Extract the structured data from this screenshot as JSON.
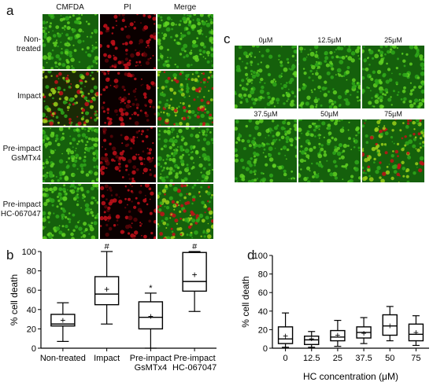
{
  "panel_a": {
    "letter": "a",
    "columns": [
      "CMFDA",
      "PI",
      "Merge"
    ],
    "rows": [
      {
        "label_lines": [
          "Non-treated"
        ]
      },
      {
        "label_lines": [
          "Impact"
        ]
      },
      {
        "label_lines": [
          "Pre-impact",
          "GsMTx4"
        ]
      },
      {
        "label_lines": [
          "Pre-impact",
          "HC-067047"
        ]
      }
    ],
    "colors": {
      "green": "#2fa81a",
      "red": "#c4101a",
      "dark": "#0a0000"
    }
  },
  "panel_c": {
    "letter": "c",
    "labels": [
      "0µM",
      "12.5µM",
      "25µM",
      "37.5µM",
      "50µM",
      "75µM"
    ]
  },
  "panel_b": {
    "letter": "b",
    "chart_data": {
      "type": "box",
      "ylabel": "% cell death",
      "ylim": [
        0,
        100
      ],
      "yticks": [
        0,
        20,
        40,
        60,
        80,
        100
      ],
      "categories": [
        [
          "Non-treated"
        ],
        [
          "Impact"
        ],
        [
          "Pre-impact",
          "GsMTx4"
        ],
        [
          "Pre-impact",
          "HC-067047"
        ]
      ],
      "boxes": [
        {
          "min": 7,
          "q1": 23,
          "median": 25,
          "q3": 35,
          "max": 47,
          "mean": 29,
          "mark": ""
        },
        {
          "min": 25,
          "q1": 45,
          "median": 56,
          "q3": 74,
          "max": 100,
          "mean": 61,
          "mark": "#"
        },
        {
          "min": 0,
          "q1": 20,
          "median": 32,
          "q3": 48,
          "max": 57,
          "mean": 33,
          "mark": "*"
        },
        {
          "min": 38,
          "q1": 59,
          "median": 69,
          "q3": 99,
          "max": 100,
          "mean": 76,
          "mark": "#"
        }
      ]
    }
  },
  "panel_d": {
    "letter": "d",
    "chart_data": {
      "type": "box",
      "xlabel": "HC concentration (μM)",
      "ylabel": "% cell death",
      "ylim": [
        0,
        100
      ],
      "yticks": [
        0,
        20,
        40,
        60,
        80,
        100
      ],
      "categories": [
        "0",
        "12.5",
        "25",
        "37.5",
        "50",
        "75"
      ],
      "boxes": [
        {
          "min": 1,
          "q1": 5,
          "median": 10,
          "q3": 23,
          "max": 38,
          "mean": 13
        },
        {
          "min": 1,
          "q1": 4,
          "median": 9,
          "q3": 13,
          "max": 18,
          "mean": 10
        },
        {
          "min": 2,
          "q1": 8,
          "median": 12,
          "q3": 19,
          "max": 30,
          "mean": 14
        },
        {
          "min": 5,
          "q1": 11,
          "median": 17,
          "q3": 23,
          "max": 33,
          "mean": 16
        },
        {
          "min": 8,
          "q1": 14,
          "median": 24,
          "q3": 36,
          "max": 45,
          "mean": 24
        },
        {
          "min": 3,
          "q1": 8,
          "median": 15,
          "q3": 26,
          "max": 35,
          "mean": 17
        }
      ]
    }
  }
}
